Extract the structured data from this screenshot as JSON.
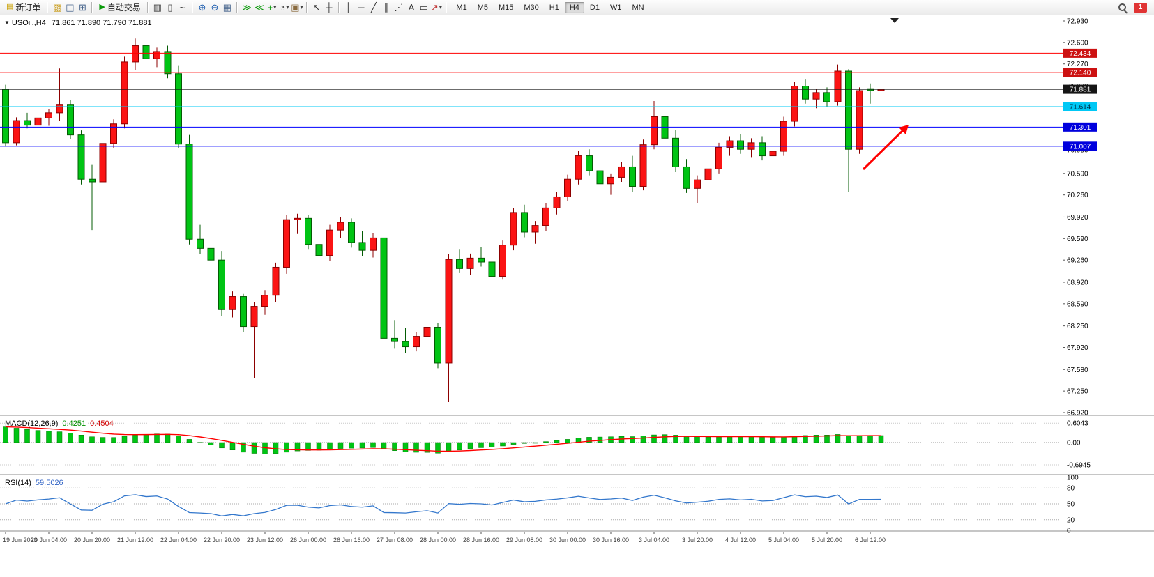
{
  "toolbar": {
    "left_items": [
      {
        "type": "button",
        "name": "new-order-button",
        "label": "新订单",
        "glyph": "▤",
        "glyph_color": "#c9a002"
      },
      {
        "type": "sep"
      },
      {
        "type": "icon",
        "name": "new-chart-icon",
        "glyph": "▨",
        "color": "#c79810"
      },
      {
        "type": "icon",
        "name": "profiles-icon",
        "glyph": "◫",
        "color": "#46648c"
      },
      {
        "type": "icon",
        "name": "market-watch-icon",
        "glyph": "⊞",
        "color": "#46648c"
      },
      {
        "type": "sep"
      },
      {
        "type": "button",
        "name": "autotrading-button",
        "label": "自动交易",
        "glyph": "▶",
        "glyph_color": "#0a9a0a"
      },
      {
        "type": "sep"
      },
      {
        "type": "icon",
        "name": "bars-chart-icon",
        "glyph": "▥",
        "color": "#444444"
      },
      {
        "type": "icon",
        "name": "candlestick-chart-icon",
        "glyph": "▯",
        "color": "#444444"
      },
      {
        "type": "icon",
        "name": "line-chart-icon",
        "glyph": "∼",
        "color": "#444444"
      },
      {
        "type": "sep"
      },
      {
        "type": "icon",
        "name": "zoom-in-icon",
        "glyph": "⊕",
        "color": "#1f5fb0"
      },
      {
        "type": "icon",
        "name": "zoom-out-icon",
        "glyph": "⊖",
        "color": "#1f5fb0"
      },
      {
        "type": "icon",
        "name": "tile-windows-icon",
        "glyph": "▦",
        "color": "#46648c"
      },
      {
        "type": "sep"
      },
      {
        "type": "icon",
        "name": "auto-scroll-icon",
        "glyph": "≫",
        "color": "#0a9a0a"
      },
      {
        "type": "icon",
        "name": "chart-shift-icon",
        "glyph": "≪",
        "color": "#0a9a0a"
      },
      {
        "type": "icon",
        "name": "indicators-icon",
        "glyph": "+",
        "color": "#0a9a0a",
        "dropdown": true
      },
      {
        "type": "icon",
        "name": "periods-icon",
        "glyph": "◔",
        "color": "#555555",
        "dropdown": true
      },
      {
        "type": "icon",
        "name": "templates-icon",
        "glyph": "▣",
        "color": "#8a6b3f",
        "dropdown": true
      },
      {
        "type": "sep"
      },
      {
        "type": "icon",
        "name": "cursor-icon",
        "glyph": "↖",
        "color": "#333333"
      },
      {
        "type": "icon",
        "name": "crosshair-icon",
        "glyph": "┼",
        "color": "#333333"
      },
      {
        "type": "sep"
      },
      {
        "type": "icon",
        "name": "vertical-line-icon",
        "glyph": "│",
        "color": "#333333"
      },
      {
        "type": "icon",
        "name": "horizontal-line-icon",
        "glyph": "─",
        "color": "#333333"
      },
      {
        "type": "icon",
        "name": "trendline-icon",
        "glyph": "╱",
        "color": "#333333"
      },
      {
        "type": "icon",
        "name": "equidistant-channel-icon",
        "glyph": "∥",
        "color": "#333333"
      },
      {
        "type": "icon",
        "name": "fibonacci-icon",
        "glyph": "⋰",
        "color": "#333333"
      },
      {
        "type": "icon",
        "name": "text-icon",
        "glyph": "A",
        "color": "#333333"
      },
      {
        "type": "icon",
        "name": "text-label-icon",
        "glyph": "▭",
        "color": "#333333"
      },
      {
        "type": "icon",
        "name": "arrows-icon",
        "glyph": "↗",
        "color": "#c03030",
        "dropdown": true
      },
      {
        "type": "sep"
      }
    ],
    "timeframes": {
      "items": [
        "M1",
        "M5",
        "M15",
        "M30",
        "H1",
        "H4",
        "D1",
        "W1",
        "MN"
      ],
      "active": "H4"
    },
    "notification": {
      "label": "1",
      "color": "#e03434"
    }
  },
  "chart_data": {
    "type": "candlestick",
    "symbol_header": {
      "collapse_glyph": "▼",
      "symbol": "USOil.,H4",
      "ohlc": "71.861 71.890 71.790 71.881"
    },
    "bull_color": "#fb1414",
    "bull_edge": "#8d0000",
    "bear_color": "#00c414",
    "bear_edge": "#045c04",
    "price_axis": {
      "min": 66.92,
      "max": 72.93,
      "ticks": [
        "72.930",
        "72.600",
        "72.270",
        "71.930",
        "71.610",
        "71.280",
        "70.950",
        "70.590",
        "70.260",
        "69.920",
        "69.590",
        "69.260",
        "68.920",
        "68.590",
        "68.250",
        "67.920",
        "67.580",
        "67.250",
        "66.920"
      ]
    },
    "x_labels": [
      "19 Jun 2023",
      "20 Jun 04:00",
      "20 Jun 20:00",
      "21 Jun 12:00",
      "22 Jun 04:00",
      "22 Jun 20:00",
      "23 Jun 12:00",
      "26 Jun 00:00",
      "26 Jun 16:00",
      "27 Jun 08:00",
      "28 Jun 00:00",
      "28 Jun 16:00",
      "29 Jun 08:00",
      "30 Jun 00:00",
      "30 Jun 16:00",
      "3 Jul 04:00",
      "3 Jul 20:00",
      "4 Jul 12:00",
      "5 Jul 04:00",
      "5 Jul 20:00",
      "6 Jul 12:00"
    ],
    "x_label_candle_step": 4,
    "candles": [
      [
        71.88,
        71.95,
        71.0,
        71.06
      ],
      [
        71.06,
        71.45,
        71.02,
        71.4
      ],
      [
        71.4,
        71.52,
        71.28,
        71.33
      ],
      [
        71.33,
        71.48,
        71.25,
        71.44
      ],
      [
        71.44,
        71.58,
        71.32,
        71.52
      ],
      [
        71.52,
        72.2,
        71.4,
        71.65
      ],
      [
        71.65,
        71.72,
        71.12,
        71.18
      ],
      [
        71.18,
        71.25,
        70.42,
        70.5
      ],
      [
        70.5,
        70.72,
        69.72,
        70.46
      ],
      [
        70.46,
        71.12,
        70.4,
        71.05
      ],
      [
        71.05,
        71.42,
        70.98,
        71.35
      ],
      [
        71.35,
        72.38,
        71.28,
        72.3
      ],
      [
        72.3,
        72.66,
        72.18,
        72.55
      ],
      [
        72.55,
        72.62,
        72.28,
        72.35
      ],
      [
        72.35,
        72.52,
        72.22,
        72.46
      ],
      [
        72.46,
        72.55,
        72.05,
        72.12
      ],
      [
        72.12,
        72.25,
        70.98,
        71.04
      ],
      [
        71.04,
        71.18,
        69.5,
        69.58
      ],
      [
        69.58,
        69.8,
        69.35,
        69.44
      ],
      [
        69.44,
        69.58,
        69.18,
        69.26
      ],
      [
        69.26,
        69.4,
        68.4,
        68.5
      ],
      [
        68.5,
        68.78,
        68.38,
        68.7
      ],
      [
        68.7,
        68.74,
        68.16,
        68.24
      ],
      [
        68.24,
        68.62,
        67.45,
        68.55
      ],
      [
        68.55,
        68.8,
        68.42,
        68.72
      ],
      [
        68.72,
        69.22,
        68.62,
        69.15
      ],
      [
        69.15,
        69.95,
        69.05,
        69.88
      ],
      [
        69.88,
        69.97,
        69.66,
        69.9
      ],
      [
        69.9,
        69.95,
        69.42,
        69.5
      ],
      [
        69.5,
        69.66,
        69.25,
        69.33
      ],
      [
        69.33,
        69.8,
        69.24,
        69.72
      ],
      [
        69.72,
        69.92,
        69.6,
        69.84
      ],
      [
        69.84,
        69.9,
        69.45,
        69.53
      ],
      [
        69.53,
        69.7,
        69.32,
        69.41
      ],
      [
        69.41,
        69.67,
        69.3,
        69.6
      ],
      [
        69.6,
        69.64,
        67.98,
        68.06
      ],
      [
        68.06,
        68.34,
        67.9,
        68.01
      ],
      [
        68.01,
        68.22,
        67.84,
        67.93
      ],
      [
        67.93,
        68.16,
        67.86,
        68.09
      ],
      [
        68.09,
        68.31,
        67.96,
        68.23
      ],
      [
        68.23,
        68.3,
        67.6,
        67.68
      ],
      [
        67.68,
        69.35,
        67.08,
        69.27
      ],
      [
        69.27,
        69.42,
        69.06,
        69.13
      ],
      [
        69.13,
        69.36,
        69.03,
        69.29
      ],
      [
        69.29,
        69.46,
        69.16,
        69.23
      ],
      [
        69.23,
        69.31,
        68.92,
        69.01
      ],
      [
        69.01,
        69.56,
        68.96,
        69.49
      ],
      [
        69.49,
        70.06,
        69.41,
        69.99
      ],
      [
        69.99,
        70.11,
        69.61,
        69.69
      ],
      [
        69.69,
        69.86,
        69.51,
        69.79
      ],
      [
        69.79,
        70.13,
        69.71,
        70.06
      ],
      [
        70.06,
        70.31,
        69.96,
        70.23
      ],
      [
        70.23,
        70.57,
        70.16,
        70.5
      ],
      [
        70.5,
        70.93,
        70.42,
        70.86
      ],
      [
        70.86,
        70.96,
        70.56,
        70.63
      ],
      [
        70.63,
        70.81,
        70.36,
        70.43
      ],
      [
        70.43,
        70.59,
        70.26,
        70.53
      ],
      [
        70.53,
        70.76,
        70.46,
        70.69
      ],
      [
        70.69,
        70.86,
        70.31,
        70.39
      ],
      [
        70.39,
        71.11,
        70.33,
        71.03
      ],
      [
        71.03,
        71.7,
        70.96,
        71.46
      ],
      [
        71.46,
        71.73,
        71.06,
        71.13
      ],
      [
        71.13,
        71.26,
        70.61,
        70.69
      ],
      [
        70.69,
        70.81,
        70.29,
        70.36
      ],
      [
        70.36,
        70.56,
        70.13,
        70.49
      ],
      [
        70.49,
        70.73,
        70.41,
        70.66
      ],
      [
        70.66,
        71.06,
        70.59,
        70.99
      ],
      [
        70.99,
        71.16,
        70.86,
        71.09
      ],
      [
        71.09,
        71.19,
        70.89,
        70.96
      ],
      [
        70.96,
        71.13,
        70.83,
        71.06
      ],
      [
        71.06,
        71.16,
        70.79,
        70.86
      ],
      [
        70.86,
        70.99,
        70.69,
        70.93
      ],
      [
        70.93,
        71.46,
        70.86,
        71.39
      ],
      [
        71.39,
        71.99,
        71.31,
        71.93
      ],
      [
        71.93,
        72.03,
        71.66,
        71.73
      ],
      [
        71.73,
        71.89,
        71.59,
        71.83
      ],
      [
        71.83,
        71.91,
        71.61,
        71.69
      ],
      [
        71.69,
        72.26,
        71.63,
        72.16
      ],
      [
        72.16,
        72.19,
        70.3,
        70.96
      ],
      [
        70.96,
        71.91,
        70.89,
        71.86
      ],
      [
        71.89,
        71.97,
        71.66,
        71.861
      ],
      [
        71.861,
        71.89,
        71.79,
        71.881
      ]
    ],
    "levels": [
      {
        "value": 72.434,
        "label": "72.434",
        "line_color": "#ff0000",
        "badge_bg": "#cc1111",
        "text_color": "#ffffff"
      },
      {
        "value": 72.14,
        "label": "72.140",
        "line_color": "#ff0000",
        "badge_bg": "#cc1111",
        "text_color": "#ffffff"
      },
      {
        "value": 71.881,
        "label": "71.881",
        "line_color": "#151515",
        "badge_bg": "#151515",
        "text_color": "#ffffff"
      },
      {
        "value": 71.614,
        "label": "71.614",
        "line_color": "#00c8f5",
        "badge_bg": "#00c8f5",
        "text_color": "#00263f"
      },
      {
        "value": 71.301,
        "label": "71.301",
        "line_color": "#0000ff",
        "badge_bg": "#0000dd",
        "text_color": "#ffffff"
      },
      {
        "value": 71.007,
        "label": "71.007",
        "line_color": "#0000ff",
        "badge_bg": "#0000dd",
        "text_color": "#ffffff"
      }
    ],
    "macd": {
      "label": "MACD(12,26,9)",
      "value_main": "0.4251",
      "value_signal": "0.4504",
      "axis_labels": [
        "0.6043",
        "0.00",
        "-0.6945"
      ],
      "axis_values": [
        0.6043,
        0,
        -0.6945
      ],
      "histogram_color": "#00c414",
      "histogram_edge": "#037403",
      "signal_color": "#ff0000"
    },
    "rsi": {
      "label": "RSI(14)",
      "value": "59.5026",
      "axis_labels": [
        "100",
        "80",
        "50",
        "20",
        "0"
      ],
      "axis_values": [
        100,
        80,
        50,
        20,
        0
      ],
      "level_lines": [
        80,
        50,
        20
      ],
      "line_color": "#3377cc"
    },
    "annotations": [
      {
        "type": "arrow",
        "color": "#ff0000",
        "direction": "up-right"
      }
    ]
  }
}
